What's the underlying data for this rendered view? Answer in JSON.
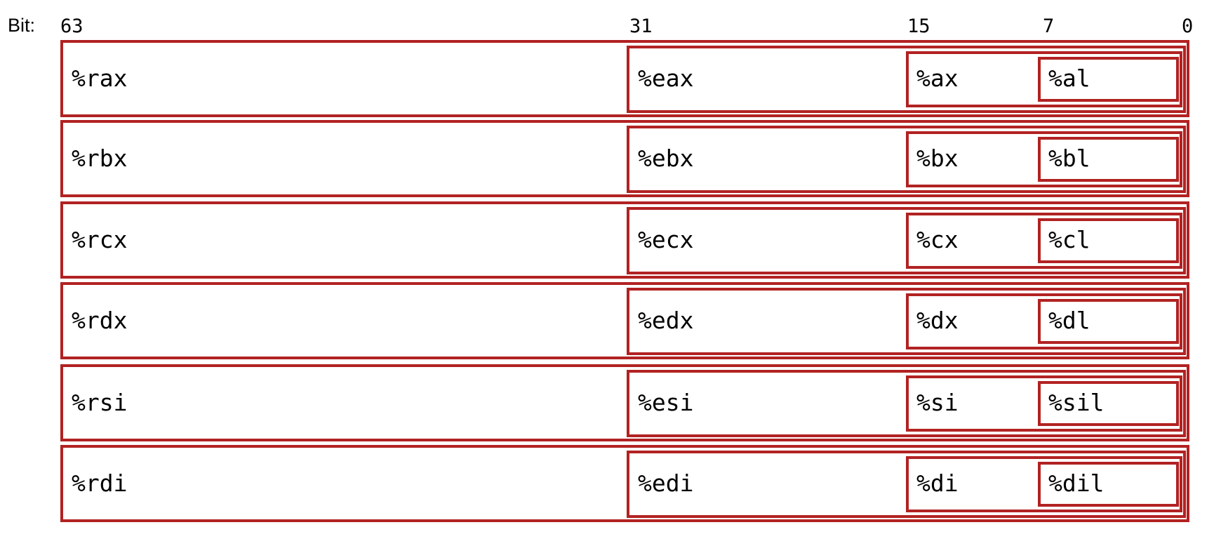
{
  "bit_label": "Bit:",
  "bit_markers": [
    "63",
    "31",
    "15",
    "7",
    "0"
  ],
  "border_color": "#b22222",
  "registers": [
    {
      "r64": "%rax",
      "r32": "%eax",
      "r16": "%ax",
      "r8": "%al"
    },
    {
      "r64": "%rbx",
      "r32": "%ebx",
      "r16": "%bx",
      "r8": "%bl"
    },
    {
      "r64": "%rcx",
      "r32": "%ecx",
      "r16": "%cx",
      "r8": "%cl"
    },
    {
      "r64": "%rdx",
      "r32": "%edx",
      "r16": "%dx",
      "r8": "%dl"
    },
    {
      "r64": "%rsi",
      "r32": "%esi",
      "r16": "%si",
      "r8": "%sil"
    },
    {
      "r64": "%rdi",
      "r32": "%edi",
      "r16": "%di",
      "r8": "%dil"
    }
  ]
}
